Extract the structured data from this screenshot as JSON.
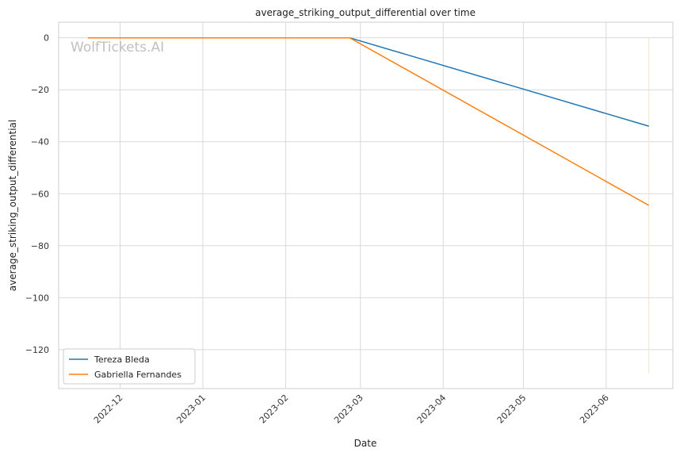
{
  "chart_data": {
    "type": "line",
    "title": "average_striking_output_differential over time",
    "xlabel": "Date",
    "ylabel": "average_striking_output_differential",
    "watermark": "WolfTickets.AI",
    "x_ticks": [
      {
        "date": "2022-12-01",
        "label": "2022-12"
      },
      {
        "date": "2023-01-01",
        "label": "2023-01"
      },
      {
        "date": "2023-02-01",
        "label": "2023-02"
      },
      {
        "date": "2023-03-01",
        "label": "2023-03"
      },
      {
        "date": "2023-04-01",
        "label": "2023-04"
      },
      {
        "date": "2023-05-01",
        "label": "2023-05"
      },
      {
        "date": "2023-06-01",
        "label": "2023-06"
      }
    ],
    "y_ticks": [
      0,
      -20,
      -40,
      -60,
      -80,
      -100,
      -120
    ],
    "xlim": [
      "2022-11-08",
      "2023-06-26"
    ],
    "ylim": [
      -135,
      6
    ],
    "grid": true,
    "legend_position": "lower-left",
    "series": [
      {
        "name": "Tereza Bleda",
        "color": "#1f77b4",
        "points": [
          {
            "x": "2022-11-19",
            "y": 0
          },
          {
            "x": "2023-02-25",
            "y": 0
          },
          {
            "x": "2023-06-17",
            "y": -34
          }
        ]
      },
      {
        "name": "Gabriella Fernandes",
        "color": "#ff7f0e",
        "points": [
          {
            "x": "2022-11-19",
            "y": 0
          },
          {
            "x": "2023-02-25",
            "y": 0
          },
          {
            "x": "2023-06-17",
            "y": -64.5
          }
        ]
      }
    ],
    "vertical_marker": {
      "x": "2023-06-17",
      "y_range": [
        0,
        -129
      ],
      "color": "#f0e6c8"
    }
  }
}
